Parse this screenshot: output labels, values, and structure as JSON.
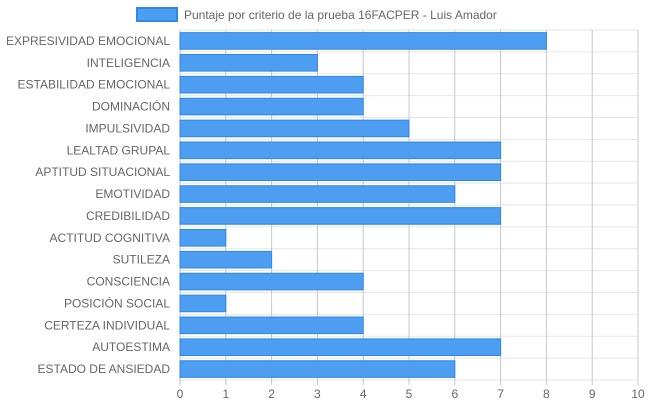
{
  "chart_data": {
    "type": "bar",
    "orientation": "horizontal",
    "categories": [
      "EXPRESIVIDAD EMOCIONAL",
      "INTELIGENCIA",
      "ESTABILIDAD EMOCIONAL",
      "DOMINACIÓN",
      "IMPULSIVIDAD",
      "LEALTAD GRUPAL",
      "APTITUD SITUACIONAL",
      "EMOTIVIDAD",
      "CREDIBILIDAD",
      "ACTITUD COGNITIVA",
      "SUTILEZA",
      "CONSCIENCIA",
      "POSICIÓN SOCIAL",
      "CERTEZA INDIVIDUAL",
      "AUTOESTIMA",
      "ESTADO DE ANSIEDAD"
    ],
    "series": [
      {
        "name": "Puntaje por criterio de la prueba 16FACPER - Luis Amador",
        "values": [
          8,
          3,
          4,
          4,
          5,
          7,
          7,
          6,
          7,
          1,
          2,
          4,
          1,
          4,
          7,
          6
        ],
        "color": "#4d9ef0",
        "border_color": "#2f87e8"
      }
    ],
    "xlim": [
      0,
      10
    ],
    "xticks": [
      "0",
      "1",
      "2",
      "3",
      "4",
      "5",
      "6",
      "7",
      "8",
      "9",
      "10"
    ],
    "grid": true,
    "legend_position": "top"
  }
}
